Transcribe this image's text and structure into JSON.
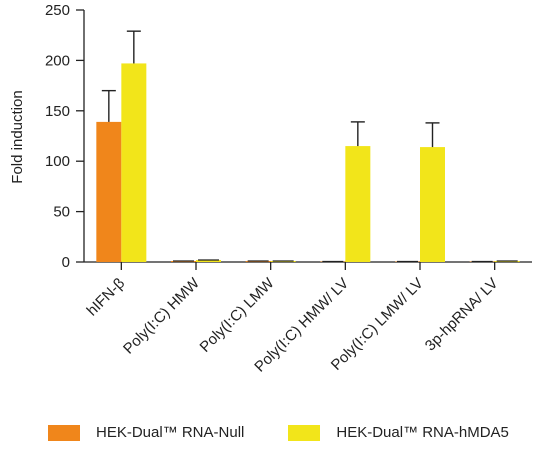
{
  "chart_data": {
    "type": "bar",
    "title": "",
    "xlabel": "",
    "ylabel": "Fold induction",
    "ylim": [
      0,
      250
    ],
    "yticks": [
      0,
      50,
      100,
      150,
      200,
      250
    ],
    "categories": [
      "hIFN-β",
      "Poly(I:C) HMW",
      "Poly(I:C) LMW",
      "Poly(I:C) HMW/ LV",
      "Poly(I:C) LMW/ LV",
      "3p-hpRNA/ LV"
    ],
    "series": [
      {
        "name": "HEK-Dual™ RNA-Null",
        "color": "#f0861b",
        "values": [
          139,
          1,
          1,
          0.5,
          0.5,
          0.5
        ],
        "errors": [
          31,
          0,
          0,
          0,
          0,
          0
        ]
      },
      {
        "name": "HEK-Dual™ RNA-hMDA5",
        "color": "#f2e51a",
        "values": [
          197,
          2,
          1,
          115,
          114,
          1
        ],
        "errors": [
          32,
          0,
          0,
          24,
          24,
          0
        ]
      }
    ],
    "legend_position": "bottom",
    "grid": false
  }
}
